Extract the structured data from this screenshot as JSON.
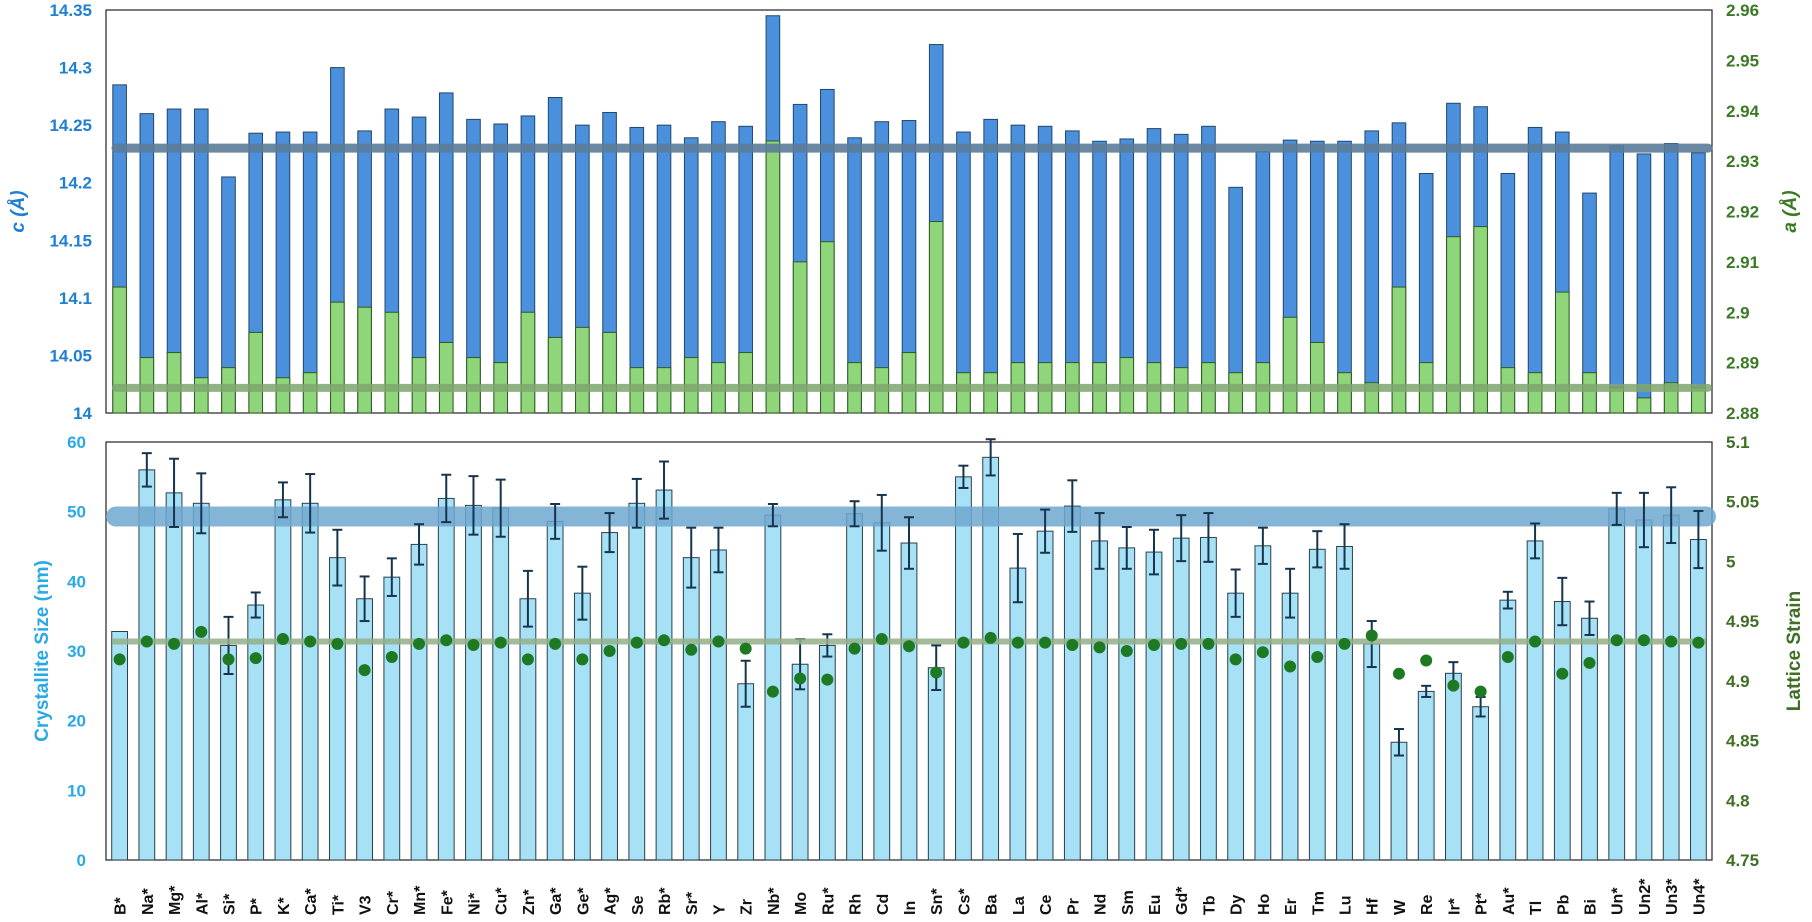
{
  "chart_data": [
    {
      "type": "bar",
      "panel": "top",
      "categories": [
        "B*",
        "Na*",
        "Mg*",
        "Al*",
        "Si*",
        "P*",
        "K*",
        "Ca*",
        "Ti*",
        "V3",
        "Cr*",
        "Mn*",
        "Fe*",
        "Ni*",
        "Cu*",
        "Zn*",
        "Ga*",
        "Ge*",
        "Ag*",
        "Se",
        "Rb*",
        "Sr*",
        "Y",
        "Zr",
        "Nb*",
        "Mo",
        "Ru*",
        "Rh",
        "Cd",
        "In",
        "Sn*",
        "Cs*",
        "Ba",
        "La",
        "Ce",
        "Pr",
        "Nd",
        "Sm",
        "Eu",
        "Gd*",
        "Tb",
        "Dy",
        "Ho",
        "Er",
        "Tm",
        "Lu",
        "Hf",
        "W",
        "Re",
        "Ir*",
        "Pt*",
        "Au*",
        "Tl",
        "Pb",
        "Bi",
        "Un*",
        "Un2*",
        "Un3*",
        "Un4*"
      ],
      "series": [
        {
          "name": "c (Å)",
          "axis": "left",
          "color": "#4a90dc",
          "values": [
            14.285,
            14.26,
            14.264,
            14.264,
            14.205,
            14.243,
            14.244,
            14.244,
            14.3,
            14.245,
            14.264,
            14.257,
            14.278,
            14.255,
            14.251,
            14.258,
            14.274,
            14.25,
            14.261,
            14.248,
            14.25,
            14.239,
            14.253,
            14.249,
            14.345,
            14.268,
            14.281,
            14.239,
            14.253,
            14.254,
            14.32,
            14.244,
            14.255,
            14.25,
            14.249,
            14.245,
            14.236,
            14.238,
            14.247,
            14.242,
            14.249,
            14.196,
            14.227,
            14.237,
            14.236,
            14.236,
            14.245,
            14.252,
            14.208,
            14.269,
            14.266,
            14.208,
            14.248,
            14.244,
            14.191,
            14.232,
            14.225,
            14.234,
            14.226
          ]
        },
        {
          "name": "a (Å)",
          "axis": "right",
          "color": "#8fd67a",
          "values": [
            2.905,
            2.891,
            2.892,
            2.887,
            2.889,
            2.896,
            2.887,
            2.888,
            2.902,
            2.901,
            2.9,
            2.891,
            2.894,
            2.891,
            2.89,
            2.9,
            2.895,
            2.897,
            2.896,
            2.889,
            2.889,
            2.891,
            2.89,
            2.892,
            2.934,
            2.91,
            2.914,
            2.89,
            2.889,
            2.892,
            2.918,
            2.888,
            2.888,
            2.89,
            2.89,
            2.89,
            2.89,
            2.891,
            2.89,
            2.889,
            2.89,
            2.888,
            2.89,
            2.899,
            2.894,
            2.888,
            2.886,
            2.905,
            2.89,
            2.915,
            2.917,
            2.889,
            2.888,
            2.904,
            2.888,
            2.885,
            2.883,
            2.886,
            2.885
          ]
        }
      ],
      "reference_lines": [
        {
          "name": "c reference",
          "axis": "left",
          "value": 14.23,
          "color": "#5b7d9a"
        },
        {
          "name": "a reference",
          "axis": "right",
          "value": 2.885,
          "color": "#7ea66e"
        }
      ],
      "ylabel_left": "c (Å)",
      "ylabel_right": "a (Å)",
      "ylim_left": [
        14,
        14.35
      ],
      "ylim_right": [
        2.88,
        2.96
      ],
      "yticks_left": [
        "14",
        "14.05",
        "14.1",
        "14.15",
        "14.2",
        "14.25",
        "14.3",
        "14.35"
      ],
      "yticks_right": [
        "2.88",
        "2.89",
        "2.9",
        "2.91",
        "2.92",
        "2.93",
        "2.94",
        "2.95",
        "2.96"
      ]
    },
    {
      "type": "bar",
      "panel": "bottom",
      "series": [
        {
          "name": "Crystallite Size (nm)",
          "axis": "left",
          "color": "#a6e1f6",
          "values": [
            32.8,
            56.0,
            52.7,
            51.2,
            30.8,
            36.6,
            51.7,
            51.2,
            43.4,
            37.5,
            40.6,
            45.3,
            51.9,
            50.9,
            50.5,
            37.5,
            48.6,
            38.3,
            47.0,
            51.2,
            53.1,
            43.4,
            44.5,
            25.3,
            49.5,
            28.1,
            30.8,
            49.7,
            48.4,
            45.5,
            27.6,
            55.0,
            57.8,
            41.9,
            47.2,
            50.8,
            45.8,
            44.8,
            44.2,
            46.2,
            46.3,
            38.3,
            45.1,
            38.3,
            44.6,
            45.0,
            31.0,
            16.9,
            24.2,
            26.8,
            22.0,
            37.3,
            45.8,
            37.1,
            34.7,
            50.4,
            48.8,
            49.5,
            46.0
          ]
        },
        {
          "name": "Crystallite Size error",
          "axis": "left",
          "values": [
            0,
            2.4,
            4.9,
            4.3,
            4.1,
            1.8,
            2.5,
            4.2,
            4.0,
            3.2,
            2.7,
            2.9,
            3.4,
            4.2,
            4.1,
            4.0,
            2.5,
            3.8,
            2.8,
            3.5,
            4.1,
            4.3,
            3.2,
            3.3,
            1.6,
            3.6,
            1.6,
            1.8,
            4.0,
            3.7,
            3.2,
            1.6,
            2.6,
            4.9,
            3.1,
            3.7,
            4.0,
            3.0,
            3.2,
            3.3,
            3.5,
            3.4,
            2.6,
            3.5,
            2.6,
            3.2,
            3.3,
            1.9,
            0.8,
            1.6,
            1.4,
            1.2,
            2.5,
            3.4,
            2.4,
            2.3,
            3.9,
            4.0,
            4.1
          ]
        },
        {
          "name": "Lattice Strain",
          "axis": "right",
          "color": "#1e7a22",
          "values": [
            4.918,
            4.933,
            4.931,
            4.941,
            4.918,
            4.919,
            4.935,
            4.933,
            4.931,
            4.909,
            4.92,
            4.931,
            4.934,
            4.93,
            4.932,
            4.918,
            4.931,
            4.918,
            4.925,
            4.932,
            4.934,
            4.926,
            4.933,
            4.927,
            4.891,
            4.902,
            4.901,
            4.927,
            4.935,
            4.929,
            4.907,
            4.932,
            4.936,
            4.932,
            4.932,
            4.93,
            4.928,
            4.925,
            4.93,
            4.931,
            4.931,
            4.918,
            4.924,
            4.912,
            4.92,
            4.931,
            4.938,
            4.906,
            4.917,
            4.896,
            4.891,
            4.92,
            4.933,
            4.906,
            4.915,
            4.934,
            4.934,
            4.933,
            4.932
          ]
        }
      ],
      "reference_lines": [
        {
          "name": "Crystallite Size reference",
          "axis": "left",
          "value": 49.3,
          "color": "#6fa8cf"
        },
        {
          "name": "Lattice Strain reference",
          "axis": "right",
          "value": 4.933,
          "color": "#93b08a"
        }
      ],
      "ylabel_left": "Crystallite Size (nm)",
      "ylabel_right": "Lattice Strain",
      "ylim_left": [
        0,
        60
      ],
      "ylim_right": [
        4.75,
        5.1
      ],
      "yticks_left": [
        "0",
        "10",
        "20",
        "30",
        "40",
        "50",
        "60"
      ],
      "yticks_right": [
        "4.75",
        "4.8",
        "4.85",
        "4.9",
        "4.95",
        "5",
        "5.05",
        "5.1"
      ]
    }
  ]
}
